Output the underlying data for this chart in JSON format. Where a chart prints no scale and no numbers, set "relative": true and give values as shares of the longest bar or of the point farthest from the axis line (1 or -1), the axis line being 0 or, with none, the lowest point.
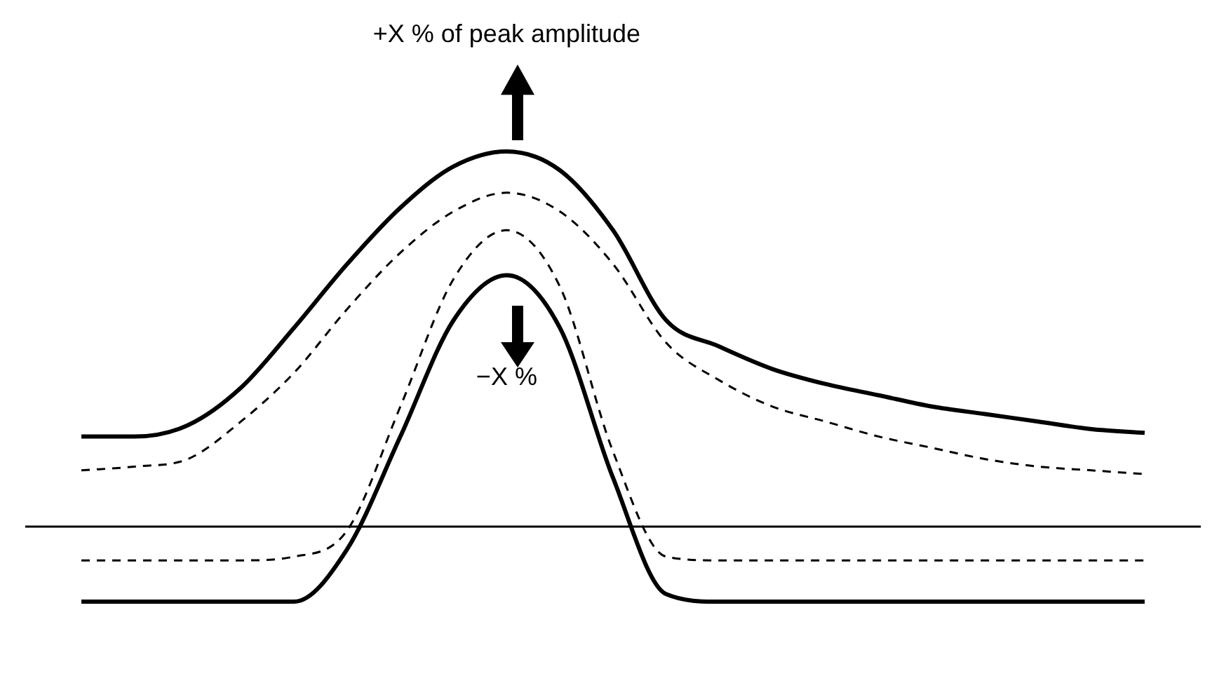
{
  "chart_data": {
    "type": "line",
    "relative": true,
    "legend": false,
    "marker": "none",
    "categories": [
      null,
      null,
      null,
      null,
      null,
      null,
      null,
      null,
      null,
      null,
      null,
      null,
      null,
      null,
      null,
      null,
      null,
      null,
      null,
      null,
      null
    ],
    "annotations": [
      "+X % of peak amplitude",
      "−X %"
    ],
    "series": [
      {
        "color": "#000000",
        "line_style": "solid",
        "values": [
          0.24,
          0.24,
          0.27,
          0.37,
          0.53,
          0.7,
          0.85,
          0.96,
          1.0,
          0.95,
          0.79,
          0.55,
          0.48,
          0.42,
          0.38,
          0.35,
          0.32,
          0.3,
          0.28,
          0.26,
          0.25
        ]
      },
      {
        "color": "#000000",
        "line_style": "dashed",
        "values": [
          0.15,
          0.16,
          0.18,
          0.28,
          0.41,
          0.58,
          0.73,
          0.84,
          0.89,
          0.84,
          0.7,
          0.49,
          0.39,
          0.32,
          0.28,
          0.24,
          0.21,
          0.18,
          0.16,
          0.15,
          0.14
        ]
      },
      {
        "color": "#000000",
        "line_style": "dashed",
        "values": [
          -0.09,
          -0.09,
          -0.09,
          -0.09,
          -0.08,
          -0.01,
          0.32,
          0.66,
          0.79,
          0.64,
          0.2,
          -0.08,
          -0.09,
          -0.09,
          -0.09,
          -0.09,
          -0.09,
          -0.09,
          -0.09,
          -0.09,
          -0.09
        ]
      },
      {
        "color": "#000000",
        "line_style": "solid",
        "values": [
          -0.2,
          -0.2,
          -0.2,
          -0.2,
          -0.2,
          -0.06,
          0.24,
          0.55,
          0.67,
          0.53,
          0.13,
          -0.18,
          -0.2,
          -0.2,
          -0.2,
          -0.2,
          -0.2,
          -0.2,
          -0.2,
          -0.2,
          -0.2
        ]
      }
    ]
  }
}
